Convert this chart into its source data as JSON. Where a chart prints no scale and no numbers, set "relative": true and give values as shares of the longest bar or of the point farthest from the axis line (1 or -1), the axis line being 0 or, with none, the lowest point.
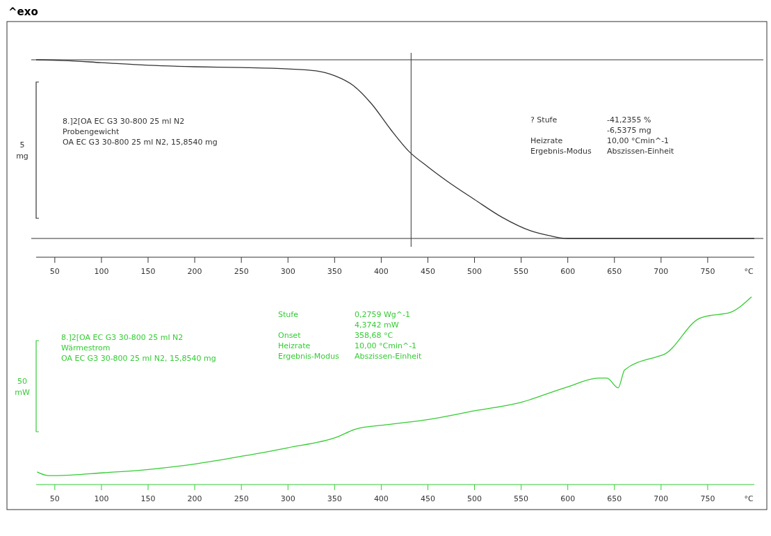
{
  "chart_data": [
    {
      "type": "line",
      "title": "^exo",
      "relative": true,
      "xlabel": "°C",
      "ylabel": "5 mg",
      "xlim": [
        30,
        800
      ],
      "xticks": [
        50,
        100,
        150,
        200,
        250,
        300,
        350,
        400,
        450,
        500,
        550,
        600,
        650,
        700,
        750
      ],
      "x": [
        30,
        60,
        100,
        150,
        200,
        250,
        300,
        330,
        350,
        370,
        390,
        410,
        430,
        450,
        470,
        500,
        530,
        560,
        580,
        600,
        650,
        700,
        800
      ],
      "series": [
        {
          "color": "#333333",
          "values": [
            1,
            0.996,
            0.984,
            0.969,
            0.961,
            0.957,
            0.949,
            0.938,
            0.911,
            0.856,
            0.751,
            0.611,
            0.486,
            0.401,
            0.323,
            0.218,
            0.117,
            0.043,
            0.016,
            0,
            0,
            0,
            0
          ]
        }
      ],
      "ref_lines": [
        {
          "axis": "x",
          "value": 432,
          "color": "#333333"
        },
        {
          "axis": "y",
          "value": 1,
          "color": "#333333"
        },
        {
          "axis": "y",
          "value": 0,
          "color": "#333333"
        }
      ],
      "annotations": [
        "8.]2[OA EC G3 30-800 25 ml N2\nProbengewicht\nOA EC G3 30-800 25 ml N2, 15,8540 mg",
        "? Stufe\t-41,2355 %\n\t-6,5375 mg\nHeizrate\t10,00 °Cmin^-1\nErgebnis-Modus\tAbszissen-Einheit"
      ]
    },
    {
      "type": "line",
      "relative": true,
      "xlabel": "°C",
      "ylabel": "50 mW",
      "xlim": [
        30,
        800
      ],
      "xticks": [
        50,
        100,
        150,
        200,
        250,
        300,
        350,
        400,
        450,
        500,
        550,
        600,
        650,
        700,
        750
      ],
      "x": [
        31,
        43,
        52,
        103,
        152,
        202,
        252,
        300,
        352,
        373,
        406,
        452,
        500,
        549,
        599,
        633,
        642,
        654,
        661,
        698,
        703,
        741,
        752,
        773,
        797
      ],
      "series": [
        {
          "color": "#33cc33",
          "values": [
            0.067,
            0.048,
            0.048,
            0.063,
            0.081,
            0.111,
            0.152,
            0.196,
            0.252,
            0.296,
            0.319,
            0.348,
            0.393,
            0.437,
            0.519,
            0.567,
            0.567,
            0.515,
            0.611,
            0.685,
            0.693,
            0.885,
            0.9,
            0.915,
            1
          ]
        }
      ],
      "annotations": [
        "8.]2[OA EC G3 30-800 25 ml N2\nWärmestrom\nOA EC G3 30-800 25 ml N2, 15,8540 mg",
        "Stufe\t0,2759 Wg^-1\n\t4,3742 mW\nOnset\t358,68 °C\nHeizrate\t10,00 °Cmin^-1\nErgebnis-Modus\tAbszissen-Einheit"
      ]
    }
  ]
}
